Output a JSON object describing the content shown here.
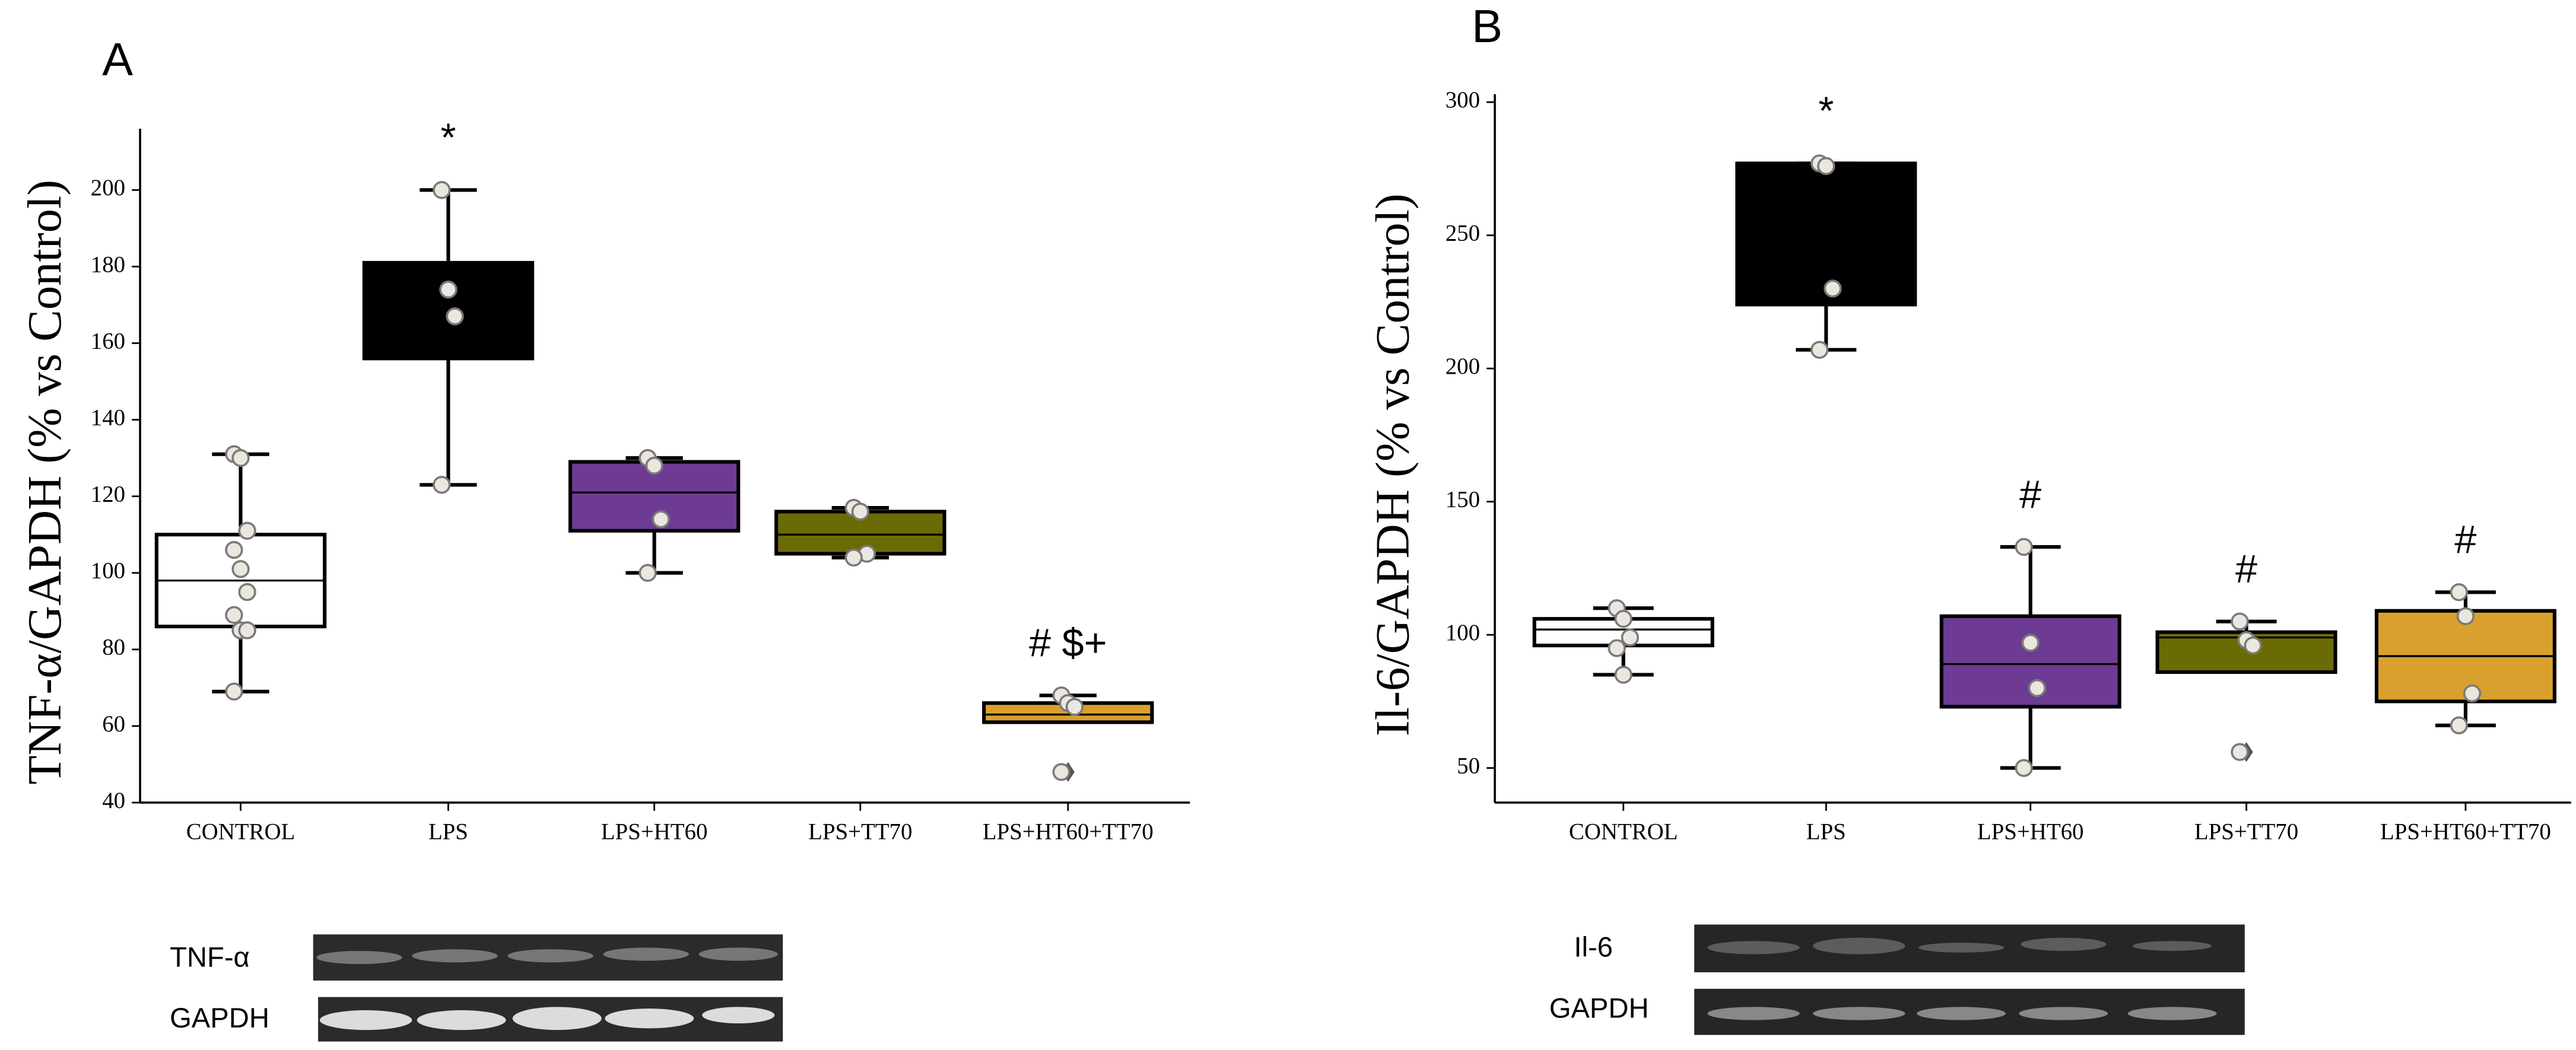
{
  "chart_data": [
    {
      "type": "box",
      "panel": "A",
      "ylabel": "TNF-α/GAPDH (% vs Control)",
      "categories": [
        "CONTROL",
        "LPS",
        "LPS+HT60",
        "LPS+TT70",
        "LPS+HT60+TT70"
      ],
      "colors": [
        "#ffffff",
        "#000000",
        "#6d3b93",
        "#6b6b05",
        "#d9a02e"
      ],
      "ylim": [
        40,
        216
      ],
      "yticks": [
        40,
        60,
        80,
        100,
        120,
        140,
        160,
        180,
        200
      ],
      "boxes": [
        {
          "whisker_low": 69,
          "q1": 86,
          "median": 98,
          "q3": 110,
          "whisker_high": 131,
          "points": [
            131,
            130,
            111,
            106,
            101,
            95,
            89,
            85,
            85,
            69
          ],
          "outliers": []
        },
        {
          "whisker_low": 123,
          "q1": 156,
          "median": 170,
          "q3": 181,
          "whisker_high": 200,
          "points": [
            200,
            174,
            167,
            123
          ],
          "outliers": []
        },
        {
          "whisker_low": 100,
          "q1": 111,
          "median": 121,
          "q3": 129,
          "whisker_high": 130,
          "points": [
            130,
            128,
            114,
            100
          ],
          "outliers": []
        },
        {
          "whisker_low": 104,
          "q1": 105,
          "median": 110,
          "q3": 116,
          "whisker_high": 117,
          "points": [
            117,
            116,
            105,
            104
          ],
          "outliers": []
        },
        {
          "whisker_low": 61,
          "q1": 61,
          "median": 63,
          "q3": 66,
          "whisker_high": 68,
          "points": [
            68,
            66,
            65,
            48
          ],
          "outliers": [
            48
          ]
        }
      ],
      "annotations": [
        null,
        "*",
        null,
        null,
        "# $+"
      ]
    },
    {
      "type": "box",
      "panel": "B",
      "ylabel": "Il-6/GAPDH (% vs Control)",
      "categories": [
        "CONTROL",
        "LPS",
        "LPS+HT60",
        "LPS+TT70",
        "LPS+HT60+TT70"
      ],
      "colors": [
        "#ffffff",
        "#000000",
        "#6d3b93",
        "#6b6b05",
        "#d9a02e"
      ],
      "ylim": [
        37,
        303
      ],
      "yticks": [
        50,
        100,
        150,
        200,
        250,
        300
      ],
      "boxes": [
        {
          "whisker_low": 85,
          "q1": 96,
          "median": 102,
          "q3": 106,
          "whisker_high": 110,
          "points": [
            110,
            106,
            99,
            95,
            85
          ],
          "outliers": []
        },
        {
          "whisker_low": 207,
          "q1": 224,
          "median": 253,
          "q3": 277,
          "whisker_high": 277,
          "points": [
            277,
            276,
            230,
            207
          ],
          "outliers": []
        },
        {
          "whisker_low": 50,
          "q1": 73,
          "median": 89,
          "q3": 107,
          "whisker_high": 133,
          "points": [
            133,
            97,
            80,
            50
          ],
          "outliers": []
        },
        {
          "whisker_low": 86,
          "q1": 86,
          "median": 99,
          "q3": 101,
          "whisker_high": 105,
          "points": [
            105,
            98,
            96,
            56
          ],
          "outliers": [
            56
          ]
        },
        {
          "whisker_low": 66,
          "q1": 75,
          "median": 92,
          "q3": 109,
          "whisker_high": 116,
          "points": [
            116,
            107,
            78,
            66
          ],
          "outliers": []
        }
      ],
      "annotations": [
        null,
        "*",
        "#",
        "#",
        "#"
      ]
    }
  ],
  "blots": [
    {
      "labels": [
        "TNF-α",
        "GAPDH"
      ]
    },
    {
      "labels": [
        "Il-6",
        "GAPDH"
      ]
    }
  ]
}
